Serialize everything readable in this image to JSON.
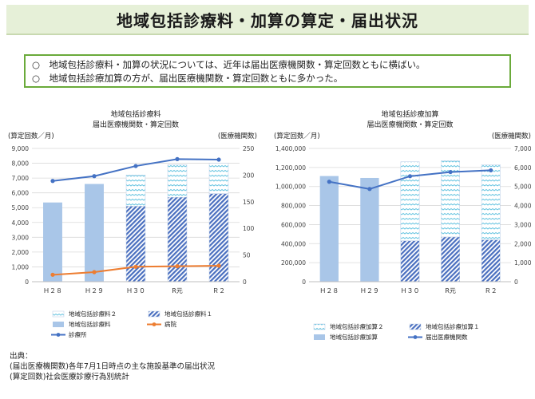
{
  "page_title": "地域包括診療料・加算の算定・届出状況",
  "summary": [
    "○　地域包括診療料・加算の状況については、近年は届出医療機関数・算定回数ともに横ばい。",
    "○　地域包括診療加算の方が、届出医療機関数・算定回数ともに多かった。"
  ],
  "source": {
    "heading": "出典：",
    "lines": [
      "(届出医療機関数)各年7月1日時点の主な施設基準の届出状況",
      "(算定回数)社会医療診療行為別統計"
    ]
  },
  "chart_data": [
    {
      "type": "bar",
      "title": [
        "地域包括診療料",
        "届出医療機関数・算定回数"
      ],
      "ylabel_left": "(算定回数／月)",
      "ylabel_right": "(医療機関数)",
      "categories": [
        "Ｈ２８",
        "Ｈ２９",
        "Ｈ３０",
        "R元",
        "Ｒ２"
      ],
      "ylim_left": [
        0,
        9000
      ],
      "yticks_left": [
        "0",
        "1,000",
        "2,000",
        "3,000",
        "4,000",
        "5,000",
        "6,000",
        "7,000",
        "8,000",
        "9,000"
      ],
      "ylim_right": [
        0,
        250
      ],
      "yticks_right": [
        "0",
        "50",
        "100",
        "150",
        "200",
        "250"
      ],
      "bars": [
        {
          "name": "地域包括診療料",
          "values": [
            5350,
            6600,
            null,
            null,
            null
          ],
          "color": "#a9c6e8",
          "pattern": "solid"
        },
        {
          "name": "地域包括診療料１",
          "values": [
            null,
            null,
            5100,
            5700,
            5950
          ],
          "color": "#5b7fc4",
          "pattern": "hatch"
        },
        {
          "name": "地域包括診療料２",
          "values": [
            null,
            null,
            2100,
            2200,
            2050
          ],
          "color": "#7fd0e8",
          "pattern": "wave"
        }
      ],
      "lines": [
        {
          "name": "病院",
          "values": [
            13,
            18,
            28,
            29,
            30
          ],
          "color": "#ed7d31"
        },
        {
          "name": "診療所",
          "values": [
            189,
            198,
            217,
            230,
            229
          ],
          "color": "#4472c4"
        }
      ],
      "legend": [
        "地域包括診療料２",
        "地域包括診療料１",
        "地域包括診療料",
        "病院",
        "診療所"
      ]
    },
    {
      "type": "bar",
      "title": [
        "地域包括診療加算",
        "届出医療機関数・算定回数"
      ],
      "ylabel_left": "(算定回数／月)",
      "ylabel_right": "(医療機関数)",
      "categories": [
        "Ｈ２８",
        "Ｈ２９",
        "Ｈ３０",
        "R元",
        "Ｒ２"
      ],
      "ylim_left": [
        0,
        1400000
      ],
      "yticks_left": [
        "0",
        "200,000",
        "400,000",
        "600,000",
        "800,000",
        "1,000,000",
        "1,200,000",
        "1,400,000"
      ],
      "ylim_right": [
        0,
        7000
      ],
      "yticks_right": [
        "0",
        "1,000",
        "2,000",
        "3,000",
        "4,000",
        "5,000",
        "6,000",
        "7,000"
      ],
      "bars": [
        {
          "name": "地域包括診療加算",
          "values": [
            1110000,
            1090000,
            null,
            null,
            null
          ],
          "color": "#a9c6e8",
          "pattern": "solid"
        },
        {
          "name": "地域包括診療加算１",
          "values": [
            null,
            null,
            430000,
            470000,
            440000
          ],
          "color": "#5b7fc4",
          "pattern": "hatch"
        },
        {
          "name": "地域包括診療加算２",
          "values": [
            null,
            null,
            830000,
            800000,
            790000
          ],
          "color": "#7fd0e8",
          "pattern": "wave"
        }
      ],
      "lines": [
        {
          "name": "届出医療機関数",
          "values": [
            5250,
            4870,
            5540,
            5760,
            5850
          ],
          "color": "#4472c4"
        }
      ],
      "legend": [
        "地域包括診療加算２",
        "地域包括診療加算１",
        "地域包括診療加算",
        "届出医療機関数"
      ]
    }
  ]
}
